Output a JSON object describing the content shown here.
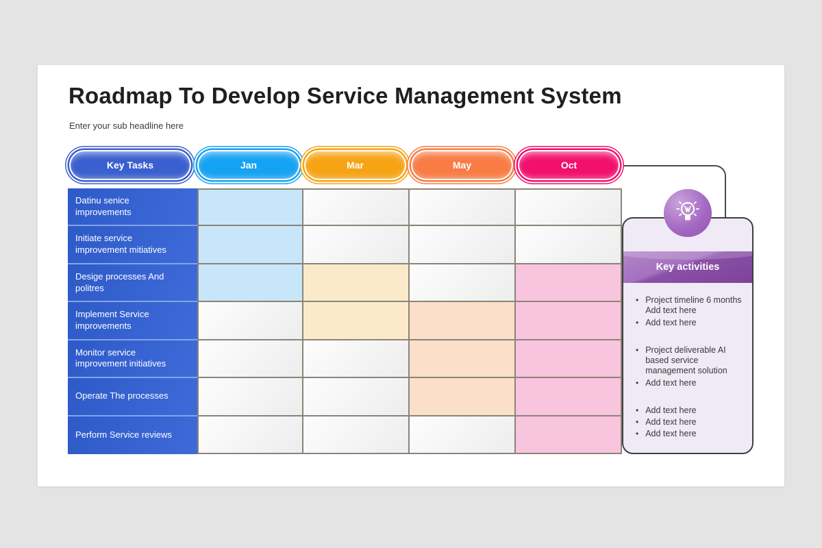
{
  "page": {
    "title": "Roadmap To Develop Service Management System",
    "subtitle": "Enter your sub headline here"
  },
  "timeline": {
    "header": {
      "label": "Key Tasks",
      "color": "#3a5fce"
    },
    "months": [
      {
        "label": "Jan",
        "color": "#16a2f2",
        "cell_color": "#c8e6f9"
      },
      {
        "label": "Mar",
        "color": "#f6a414",
        "cell_color": "#faeaca"
      },
      {
        "label": "May",
        "color": "#f87c44",
        "cell_color": "#fcdfc9"
      },
      {
        "label": "Oct",
        "color": "#f2106e",
        "cell_color": "#f9c4dd"
      }
    ],
    "rows": [
      {
        "task": "Datinu senice improvements",
        "active": [
          "Jan"
        ]
      },
      {
        "task": "Initiate service improvement mitiatives",
        "active": [
          "Jan"
        ]
      },
      {
        "task": "Desige processes And politres",
        "active": [
          "Jan",
          "Mar",
          "Oct"
        ]
      },
      {
        "task": "Implement Service improvements",
        "active": [
          "Mar",
          "May",
          "Oct"
        ]
      },
      {
        "task": "Monitor service improvement initiatives",
        "active": [
          "May",
          "Oct"
        ]
      },
      {
        "task": "Operate The processes",
        "active": [
          "May",
          "Oct"
        ]
      },
      {
        "task": "Perform Service reviews",
        "active": [
          "Oct"
        ]
      }
    ]
  },
  "key_activities": {
    "title": "Key activities",
    "icon": "lightbulb-icon",
    "bullet_char": "•",
    "groups": [
      [
        "Project timeline 6 months\nAdd text here",
        "Add text here"
      ],
      [
        "Project deliverable AI based service management solution",
        "Add text here"
      ],
      [
        "Add text here",
        "Add text here",
        "Add text here"
      ]
    ]
  },
  "colors": {
    "page_background": "#e5e4e5",
    "card_background": "#ffffff",
    "task_column": "#3263d1",
    "grid_border": "#8a8478",
    "connector": "#4a4a4a",
    "panel_background": "#f0e9f6",
    "panel_banner": "#8a50a8",
    "bulb_circle": "#a266c0"
  }
}
